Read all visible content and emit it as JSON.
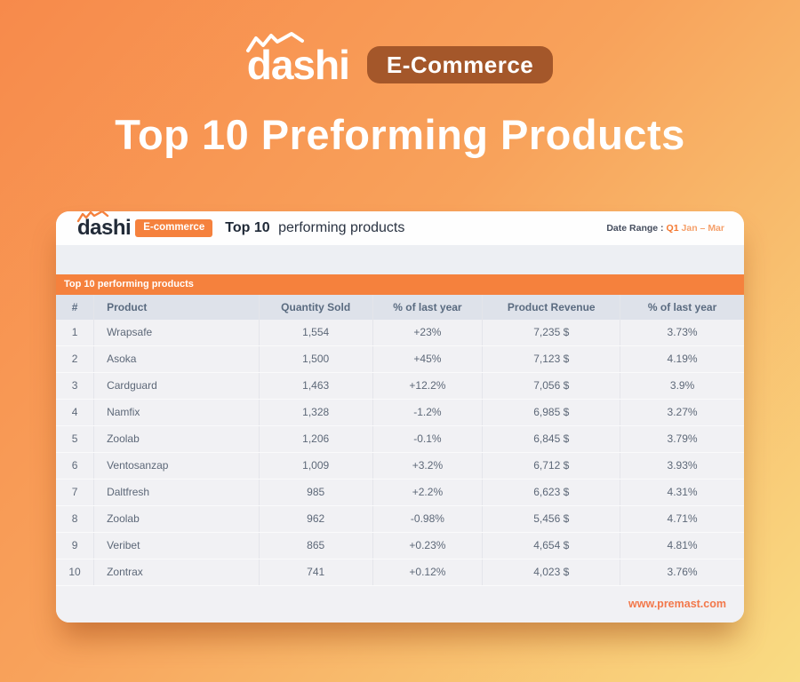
{
  "hero": {
    "logo_text": "dashi",
    "badge_label": "E-Commerce",
    "title": "Top 10 Preforming Products"
  },
  "card": {
    "header": {
      "logo_text": "dashi",
      "badge_label": "E-commerce",
      "title_bold": "Top 10",
      "title_rest": "performing products",
      "date_range_label": "Date Range :",
      "date_range_quarter": "Q1",
      "date_range_period": "Jan – Mar"
    },
    "section_bar_label": "Top 10 performing products",
    "table": {
      "columns": [
        "#",
        "Product",
        "Quantity Sold",
        "% of last year",
        "Product Revenue",
        "% of last year"
      ],
      "rows": [
        [
          "1",
          "Wrapsafe",
          "1,554",
          "+23%",
          "7,235 $",
          "3.73%"
        ],
        [
          "2",
          "Asoka",
          "1,500",
          "+45%",
          "7,123 $",
          "4.19%"
        ],
        [
          "3",
          "Cardguard",
          "1,463",
          "+12.2%",
          "7,056 $",
          "3.9%"
        ],
        [
          "4",
          "Namfix",
          "1,328",
          "-1.2%",
          "6,985 $",
          "3.27%"
        ],
        [
          "5",
          "Zoolab",
          "1,206",
          "-0.1%",
          "6,845 $",
          "3.79%"
        ],
        [
          "6",
          "Ventosanzap",
          "1,009",
          "+3.2%",
          "6,712 $",
          "3.93%"
        ],
        [
          "7",
          "Daltfresh",
          "985",
          "+2.2%",
          "6,623 $",
          "4.31%"
        ],
        [
          "8",
          "Zoolab",
          "962",
          "-0.98%",
          "5,456 $",
          "4.71%"
        ],
        [
          "9",
          "Veribet",
          "865",
          "+0.23%",
          "4,654 $",
          "4.81%"
        ],
        [
          "10",
          "Zontrax",
          "741",
          "+0.12%",
          "4,023 $",
          "3.76%"
        ]
      ]
    },
    "footer_link": "www.premast.com"
  },
  "icons": {
    "logo_squiggle": "zigzag-line-icon"
  },
  "colors": {
    "background_gradient_start": "#F78A4B",
    "background_gradient_end": "#F9DC83",
    "accent_orange": "#F5813D",
    "hero_badge_brown": "#A4572A",
    "date_quarter_orange": "#F4772E",
    "table_header_bg": "#DEE2EA",
    "table_header_text": "#5A6B80",
    "table_body_text": "#5D6878",
    "footer_link_orange": "#F2784B",
    "card_header_bg": "#FEFEFE",
    "card_body_bg": "#F1F1F4"
  }
}
